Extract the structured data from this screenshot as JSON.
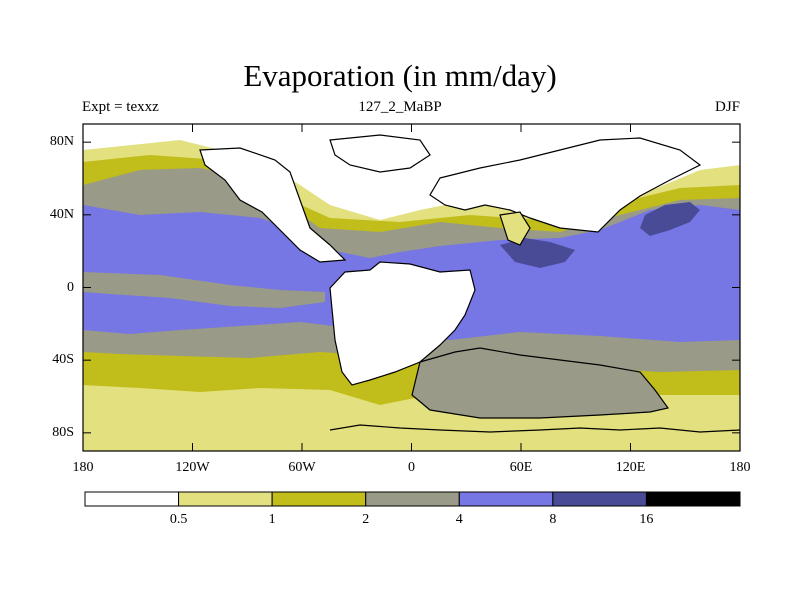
{
  "chart_data": {
    "type": "heatmap",
    "title": "Evaporation (in mm/day)",
    "subtitle_left": "Expt = texxz",
    "subtitle_center": "127_2_MaBP",
    "subtitle_right": "DJF",
    "variable": "Evaporation",
    "units": "mm/day",
    "xlim": [
      -180,
      180
    ],
    "ylim": [
      -90,
      90
    ],
    "x_ticks": [
      {
        "value": -180,
        "label": "180"
      },
      {
        "value": -120,
        "label": "120W"
      },
      {
        "value": -60,
        "label": "60W"
      },
      {
        "value": 0,
        "label": "0"
      },
      {
        "value": 60,
        "label": "60E"
      },
      {
        "value": 120,
        "label": "120E"
      },
      {
        "value": 180,
        "label": "180"
      }
    ],
    "y_ticks": [
      {
        "value": 80,
        "label": "80N"
      },
      {
        "value": 40,
        "label": "40N"
      },
      {
        "value": 0,
        "label": "0"
      },
      {
        "value": -40,
        "label": "40S"
      },
      {
        "value": -80,
        "label": "80S"
      }
    ],
    "levels": [
      0.5,
      1,
      2,
      4,
      8,
      16
    ],
    "level_labels": [
      "0.5",
      "1",
      "2",
      "4",
      "8",
      "16"
    ],
    "colors": [
      "#ffffff",
      "#e3e07f",
      "#c1bd1b",
      "#9a9a88",
      "#7676e4",
      "#4a4b96",
      "#000000"
    ],
    "bands": [
      {
        "range": "< 0.5",
        "color": "#ffffff"
      },
      {
        "range": "0.5-1",
        "color": "#e3e07f"
      },
      {
        "range": "1-2",
        "color": "#c1bd1b"
      },
      {
        "range": "2-4",
        "color": "#9a9a88"
      },
      {
        "range": "4-8",
        "color": "#7676e4"
      },
      {
        "range": "8-16",
        "color": "#4a4b96"
      },
      {
        "range": "> 16",
        "color": "#000000"
      }
    ]
  }
}
